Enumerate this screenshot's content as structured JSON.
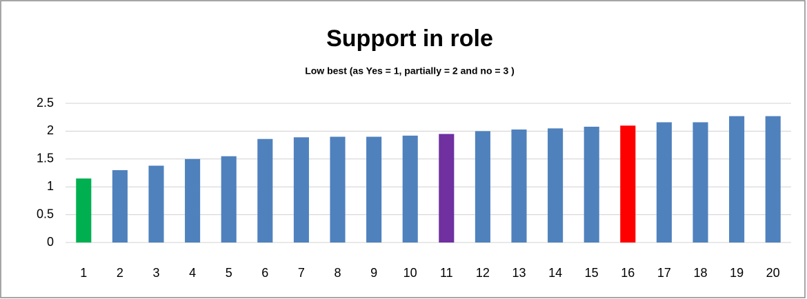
{
  "chart_data": {
    "type": "bar",
    "title": "Support in role",
    "subtitle": "Low best (as Yes = 1, partially  = 2 and no = 3 )",
    "categories": [
      "1",
      "2",
      "3",
      "4",
      "5",
      "6",
      "7",
      "8",
      "9",
      "10",
      "11",
      "12",
      "13",
      "14",
      "15",
      "16",
      "17",
      "18",
      "19",
      "20"
    ],
    "values": [
      1.15,
      1.3,
      1.38,
      1.5,
      1.55,
      1.86,
      1.89,
      1.9,
      1.9,
      1.92,
      1.95,
      2.0,
      2.03,
      2.05,
      2.08,
      2.1,
      2.16,
      2.16,
      2.27,
      2.27
    ],
    "colors": [
      "#00b050",
      "#4f81bd",
      "#4f81bd",
      "#4f81bd",
      "#4f81bd",
      "#4f81bd",
      "#4f81bd",
      "#4f81bd",
      "#4f81bd",
      "#4f81bd",
      "#7030a0",
      "#4f81bd",
      "#4f81bd",
      "#4f81bd",
      "#4f81bd",
      "#ff0000",
      "#4f81bd",
      "#4f81bd",
      "#4f81bd",
      "#4f81bd"
    ],
    "ylim": [
      0,
      2.5
    ],
    "yticks": [
      0,
      0.5,
      1,
      1.5,
      2,
      2.5
    ],
    "grid": true
  }
}
